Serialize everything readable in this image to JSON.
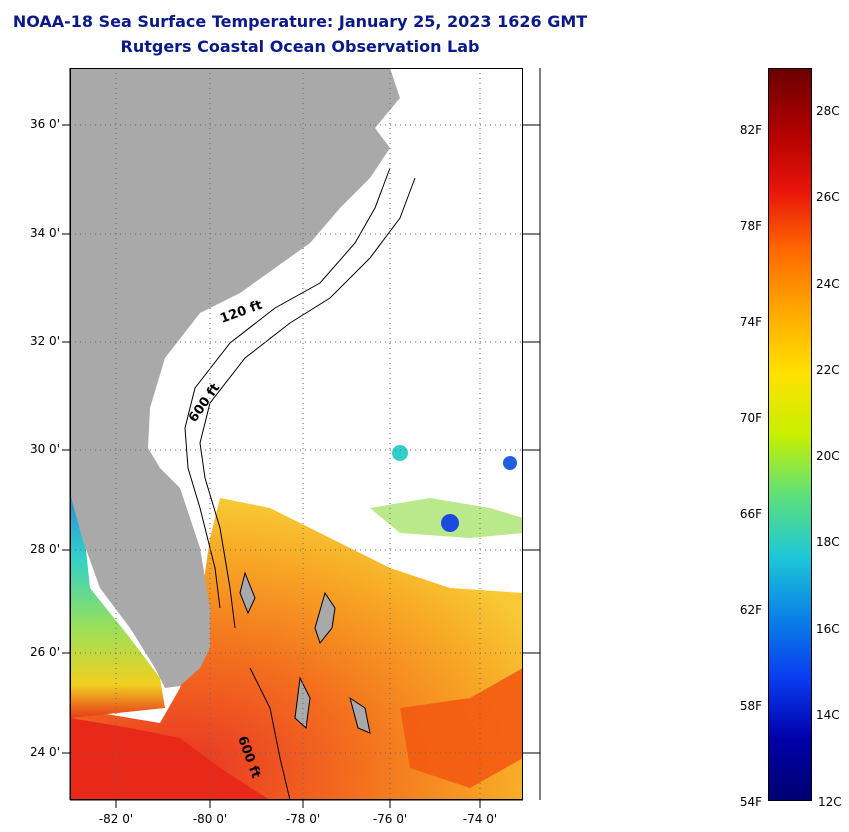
{
  "title": {
    "line1": "NOAA-18 Sea Surface Temperature:  January 25, 2023 1626 GMT",
    "line2": "Rutgers Coastal Ocean Observation Lab"
  },
  "map": {
    "lat_labels": [
      "36 0'",
      "34 0'",
      "32 0'",
      "30 0'",
      "28 0'",
      "26 0'",
      "24 0'"
    ],
    "lon_labels": [
      "-82 0'",
      "-80 0'",
      "-78 0'",
      "-76 0'",
      "-74 0'"
    ],
    "contour_labels": [
      "120 ft",
      "600 ft",
      "600 ft"
    ],
    "colors": {
      "land": "#a9a9a9",
      "cloud": "#ffffff",
      "warm": "#f36a12",
      "hot": "#e8291a",
      "cool": "#2fd0c8"
    }
  },
  "colorbar": {
    "fahrenheit_labels": [
      "82F",
      "78F",
      "74F",
      "70F",
      "66F",
      "62F",
      "58F",
      "54F"
    ],
    "celsius_labels": [
      "28C",
      "26C",
      "24C",
      "22C",
      "20C",
      "18C",
      "16C",
      "14C",
      "12C"
    ],
    "stops": [
      "#6b0000",
      "#b00000",
      "#e8140a",
      "#ff6a00",
      "#ffaa00",
      "#ffe100",
      "#c8f000",
      "#5ee07a",
      "#1ec8d8",
      "#0a82e6",
      "#0a3cf0",
      "#0000aa",
      "#000070"
    ]
  }
}
